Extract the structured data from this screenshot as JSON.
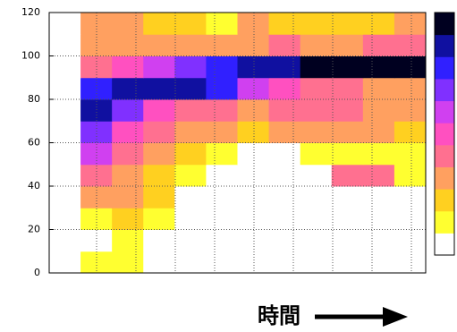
{
  "chart_data": {
    "type": "heatmap",
    "xlabel": "時間",
    "xlim": [
      0,
      12
    ],
    "ylim": [
      0,
      120
    ],
    "yticks": [
      0,
      20,
      40,
      60,
      80,
      100,
      120
    ],
    "grid": true,
    "y_bins": [
      0,
      10,
      20,
      30,
      40,
      50,
      60,
      70,
      80,
      90,
      100,
      110,
      120
    ],
    "zlim": [
      0,
      10
    ],
    "colors": [
      "#ffffff",
      "#ffff30",
      "#ffd020",
      "#ffa060",
      "#ff7090",
      "#ff50c0",
      "#d040f0",
      "#8030ff",
      "#3020ff",
      "#1010a0",
      "#000020"
    ],
    "z": [
      [
        0,
        1,
        1,
        0,
        0,
        0,
        0,
        0,
        0,
        0,
        0,
        0
      ],
      [
        0,
        0,
        1,
        0,
        0,
        0,
        0,
        0,
        0,
        0,
        0,
        0
      ],
      [
        0,
        1,
        2,
        1,
        0,
        0,
        0,
        0,
        0,
        0,
        0,
        0
      ],
      [
        0,
        3,
        3,
        2,
        0,
        0,
        0,
        0,
        0,
        0,
        0,
        0
      ],
      [
        0,
        4,
        3,
        2,
        1,
        0,
        0,
        0,
        0,
        4,
        4,
        1
      ],
      [
        0,
        6,
        4,
        3,
        2,
        1,
        0,
        0,
        1,
        1,
        1,
        1
      ],
      [
        0,
        7,
        5,
        4,
        3,
        3,
        2,
        3,
        3,
        3,
        3,
        2
      ],
      [
        0,
        9,
        7,
        5,
        4,
        4,
        3,
        4,
        4,
        4,
        3,
        3
      ],
      [
        0,
        8,
        9,
        9,
        9,
        8,
        6,
        5,
        4,
        4,
        3,
        3
      ],
      [
        0,
        4,
        5,
        6,
        7,
        8,
        9,
        9,
        10,
        10,
        10,
        10
      ],
      [
        0,
        3,
        3,
        3,
        3,
        3,
        3,
        4,
        3,
        3,
        4,
        4
      ],
      [
        0,
        3,
        3,
        2,
        2,
        1,
        3,
        2,
        2,
        2,
        2,
        3
      ]
    ]
  }
}
